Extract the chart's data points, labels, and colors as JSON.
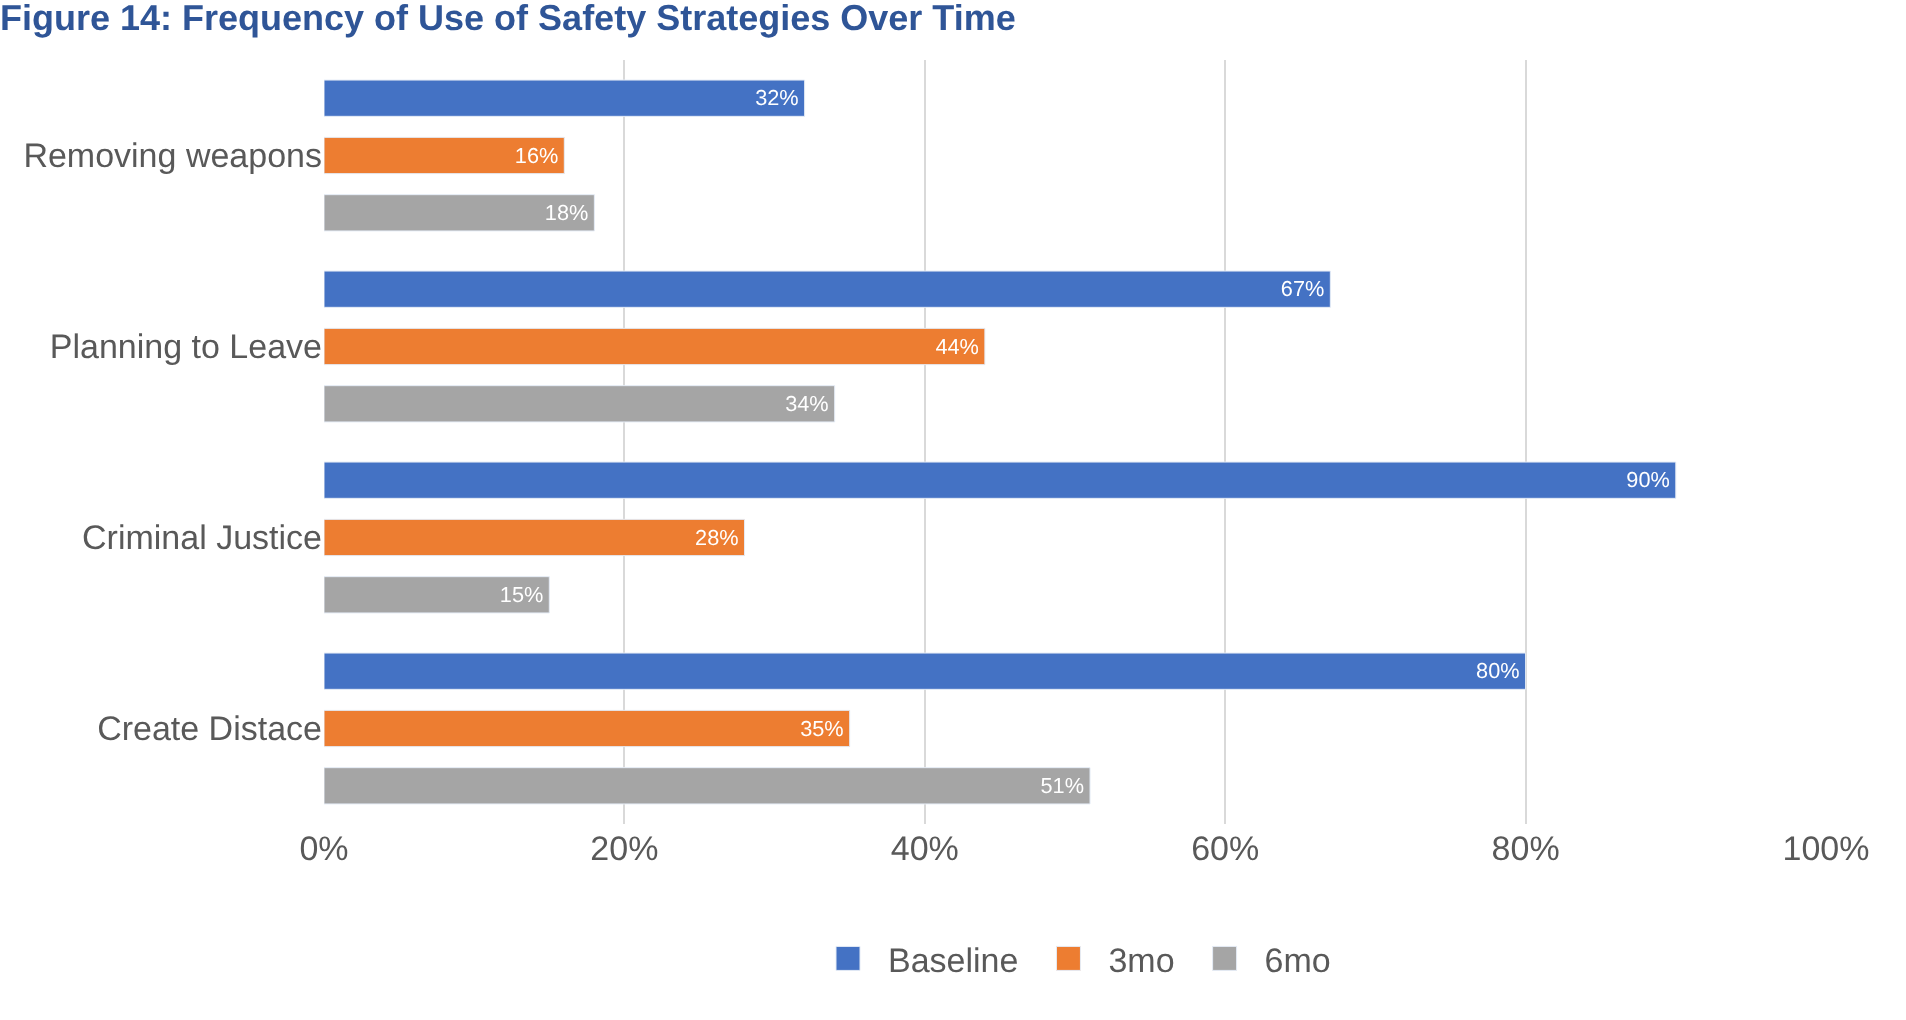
{
  "chart_data": {
    "type": "bar",
    "orientation": "horizontal",
    "title": "Figure 14: Frequency of Use of Safety Strategies Over Time",
    "categories": [
      "Removing weapons",
      "Planning to Leave",
      "Criminal Justice",
      "Create Distace"
    ],
    "series": [
      {
        "name": "Baseline",
        "color": "#4472c4",
        "values": [
          32,
          67,
          90,
          80
        ],
        "value_labels": [
          "32%",
          "67%",
          "90%",
          "80%"
        ]
      },
      {
        "name": "3mo",
        "color": "#ed7d31",
        "values": [
          16,
          44,
          28,
          35
        ],
        "value_labels": [
          "16%",
          "44%",
          "28%",
          "35%"
        ]
      },
      {
        "name": "6mo",
        "color": "#a5a5a5",
        "values": [
          18,
          34,
          15,
          51
        ],
        "value_labels": [
          "18%",
          "34%",
          "15%",
          "51%"
        ]
      }
    ],
    "xlim": [
      0,
      100
    ],
    "xticks": [
      {
        "value": 0,
        "label": "0%"
      },
      {
        "value": 20,
        "label": "20%"
      },
      {
        "value": 40,
        "label": "40%"
      },
      {
        "value": 60,
        "label": "60%"
      },
      {
        "value": 80,
        "label": "80%"
      },
      {
        "value": 100,
        "label": "100%"
      }
    ],
    "grid": "x",
    "legend": "bottom"
  }
}
